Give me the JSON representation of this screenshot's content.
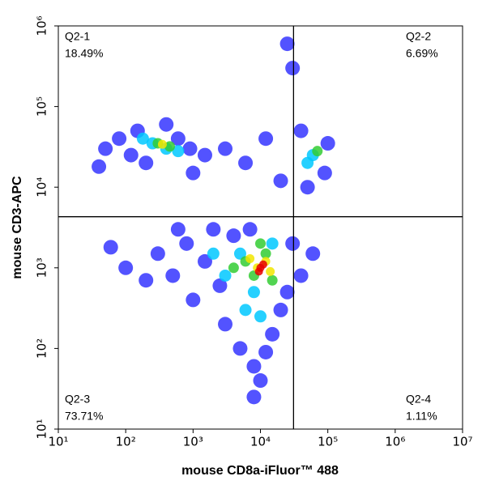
{
  "chart_data": {
    "type": "scatter",
    "x_label": "mouse CD8a-iFluor™ 488",
    "y_label": "mouse CD3-APC",
    "log_x": true,
    "log_y": true,
    "xlim": [
      10,
      10000000
    ],
    "ylim": [
      10,
      1000000
    ],
    "xticks": [
      {
        "value": 10,
        "label": "10¹"
      },
      {
        "value": 100,
        "label": "10²"
      },
      {
        "value": 1000,
        "label": "10³"
      },
      {
        "value": 10000,
        "label": "10⁴"
      },
      {
        "value": 100000,
        "label": "10⁵"
      },
      {
        "value": 1000000,
        "label": "10⁶"
      },
      {
        "value": 10000000,
        "label": "10⁷"
      }
    ],
    "yticks": [
      {
        "value": 10,
        "label": "10¹"
      },
      {
        "value": 100,
        "label": "10²"
      },
      {
        "value": 1000,
        "label": "10³"
      },
      {
        "value": 10000,
        "label": "10⁴"
      },
      {
        "value": 100000,
        "label": "10⁵"
      },
      {
        "value": 1000000,
        "label": "10⁶"
      }
    ],
    "gate_x": 31000,
    "gate_y": 4300,
    "quadrant_names": [
      "Q2-1",
      "Q2-2",
      "Q2-3",
      "Q2-4"
    ],
    "quadrant_values": [
      18.49,
      6.69,
      73.71,
      1.11
    ],
    "quadrant_value_labels": [
      "18.49%",
      "6.69%",
      "73.71%",
      "1.11%"
    ],
    "series": [
      {
        "color": "#1a1aff",
        "x": [
          50,
          80,
          120,
          150,
          200,
          600,
          900,
          1500,
          3000,
          6000,
          40,
          1000,
          400,
          12000,
          20000,
          40000,
          90000,
          100000,
          50000,
          300,
          500,
          800,
          1000,
          2000,
          3000,
          5000,
          8000,
          10000,
          15000,
          20000,
          30000,
          40000,
          60000,
          1500,
          4000,
          7000,
          200,
          100,
          60,
          12000,
          8000,
          25000,
          2500,
          600,
          25000,
          30000
        ],
        "values": [
          30000,
          40000,
          25000,
          50000,
          20000,
          40000,
          30000,
          25000,
          30000,
          20000,
          18000,
          15000,
          60000,
          40000,
          12000,
          50000,
          15000,
          35000,
          10000,
          1500,
          800,
          2000,
          400,
          3000,
          200,
          100,
          60,
          40,
          150,
          300,
          2000,
          800,
          1500,
          1200,
          2500,
          3000,
          700,
          1000,
          1800,
          90,
          25,
          500,
          600,
          3000,
          600000,
          300000
        ]
      },
      {
        "color": "#00c8ff",
        "x": [
          250,
          400,
          180,
          600,
          60000,
          50000,
          3000,
          5000,
          8000,
          15000,
          2000,
          6000,
          10000
        ],
        "values": [
          35000,
          30000,
          40000,
          28000,
          25000,
          20000,
          800,
          1500,
          500,
          2000,
          1500,
          300,
          250
        ]
      },
      {
        "color": "#33cc33",
        "x": [
          300,
          450,
          70000,
          6000,
          8000,
          12000,
          15000,
          4000,
          10000
        ],
        "values": [
          35000,
          32000,
          28000,
          1200,
          800,
          1500,
          700,
          1000,
          2000
        ]
      },
      {
        "color": "#f2e600",
        "x": [
          350,
          9000,
          12000,
          7000,
          14000
        ],
        "values": [
          34000,
          1000,
          1200,
          1300,
          900
        ]
      },
      {
        "color": "#e60000",
        "x": [
          10000,
          11000,
          9500
        ],
        "values": [
          1000,
          1100,
          900
        ]
      }
    ]
  }
}
